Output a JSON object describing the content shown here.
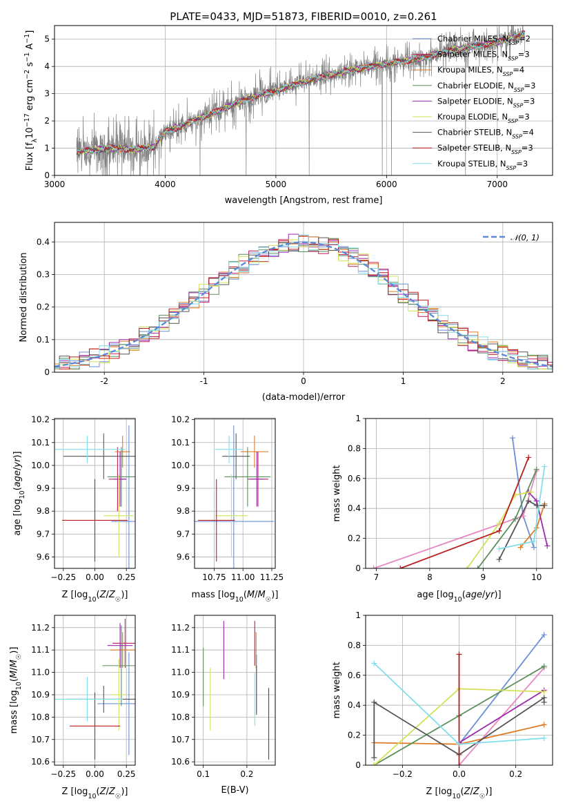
{
  "chart_data": [
    {
      "id": "spectrum",
      "type": "line",
      "title": "PLATE=0433, MJD=51873, FIBERID=0010, z=0.261",
      "xlabel": "wavelength [Angstrom, rest frame]",
      "ylabel": "Flux [fλ 10⁻¹⁷ erg cm⁻² s⁻¹ A⁻¹]",
      "xlim": [
        3000,
        7500
      ],
      "ylim": [
        0,
        5.5
      ],
      "xticks": [
        3000,
        4000,
        5000,
        6000,
        7000
      ],
      "yticks": [
        0,
        1,
        2,
        3,
        4,
        5
      ],
      "grid": true,
      "legend_position": "top-right",
      "series": [
        {
          "name": "Chabrier MILES, NSSP=2",
          "color": "#6b8ed6"
        },
        {
          "name": "Salpeter MILES, NSSP=3",
          "color": "#c2185b"
        },
        {
          "name": "Kroupa MILES, NSSP=4",
          "color": "#e07b24"
        },
        {
          "name": "Chabrier ELODIE, NSSP=3",
          "color": "#5a8f5a"
        },
        {
          "name": "Salpeter ELODIE, NSSP=3",
          "color": "#9c27b0"
        },
        {
          "name": "Kroupa ELODIE, NSSP=3",
          "color": "#d4e157"
        },
        {
          "name": "Chabrier STELIB, NSSP=4",
          "color": "#555555"
        },
        {
          "name": "Salpeter STELIB, NSSP=3",
          "color": "#b71c1c"
        },
        {
          "name": "Kroupa STELIB, NSSP=3",
          "color": "#80deea"
        }
      ],
      "data_color": "#808080",
      "continuum": {
        "x": [
          3200,
          3500,
          3700,
          3900,
          4000,
          4200,
          4500,
          4800,
          5000,
          5300,
          5600,
          6000,
          6300,
          6600,
          7000,
          7250
        ],
        "y": [
          0.85,
          1.0,
          0.95,
          1.05,
          1.6,
          1.9,
          2.4,
          2.9,
          3.1,
          3.5,
          3.8,
          4.1,
          4.3,
          4.6,
          4.9,
          5.2
        ]
      }
    },
    {
      "id": "residuals",
      "type": "line",
      "xlabel": "(data-model)/error",
      "ylabel": "Normed distribution",
      "xlim": [
        -2.5,
        2.5
      ],
      "ylim": [
        0,
        0.46
      ],
      "xticks": [
        -2,
        -1,
        0,
        1,
        2
      ],
      "yticks": [
        0.0,
        0.1,
        0.2,
        0.3,
        0.4
      ],
      "grid": true,
      "legend_position": "top-right",
      "legend": "𝒩(0, 1)",
      "gauss_color": "#5b8bd6"
    },
    {
      "id": "age-vs-Z",
      "type": "scatter",
      "xlabel": "Z [log10(Z/Z☉)]",
      "ylabel": "age  [log10(age/yr)]",
      "xlim": [
        -0.32,
        0.32
      ],
      "ylim": [
        9.55,
        10.205
      ],
      "xticks": [
        -0.25,
        0.0,
        0.25
      ],
      "xticklabels": [
        "−0.25",
        "0.00",
        "0.25"
      ],
      "yticks": [
        9.6,
        9.7,
        9.8,
        9.9,
        10.0,
        10.1,
        10.2
      ],
      "yticklabels": [
        "9.6",
        "9.7",
        "9.8",
        "9.9",
        "10.0",
        "10.1",
        "10.2"
      ],
      "points": [
        {
          "x": 0.27,
          "y": 9.755,
          "xerr": 0.14,
          "yerr": 0.42,
          "color": "#6b8ed6"
        },
        {
          "x": 0.18,
          "y": 9.94,
          "xerr": 0.07,
          "yerr": 0.14,
          "color": "#c2185b"
        },
        {
          "x": 0.22,
          "y": 10.06,
          "xerr": 0.06,
          "yerr": 0.07,
          "color": "#e07b24"
        },
        {
          "x": 0.21,
          "y": 9.95,
          "xerr": 0.11,
          "yerr": 0.13,
          "color": "#5a8f5a"
        },
        {
          "x": 0.2,
          "y": 9.94,
          "xerr": 0.05,
          "yerr": 0.12,
          "color": "#9c27b0"
        },
        {
          "x": 0.19,
          "y": 9.78,
          "xerr": 0.12,
          "yerr": 0.18,
          "color": "#d4e157"
        },
        {
          "x": 0.07,
          "y": 10.04,
          "xerr": 0.32,
          "yerr": 0.1,
          "color": "#555555"
        },
        {
          "x": 0.0,
          "y": 9.76,
          "xerr": 0.26,
          "yerr": 0.18,
          "color": "#b71c1c"
        },
        {
          "x": -0.06,
          "y": 10.07,
          "xerr": 0.3,
          "yerr": 0.06,
          "color": "#80deea"
        }
      ]
    },
    {
      "id": "age-vs-mass",
      "type": "scatter",
      "xlabel": "mass [log10(M/M☉)]",
      "xlim": [
        10.58,
        11.28
      ],
      "ylim": [
        9.55,
        10.205
      ],
      "xticks": [
        10.75,
        11.0,
        11.25
      ],
      "xticklabels": [
        "10.75",
        "11.00",
        "11.25"
      ],
      "yticks": [
        9.6,
        9.7,
        9.8,
        9.9,
        10.0,
        10.1,
        10.2
      ],
      "yticklabels": [
        "9.6",
        "9.7",
        "9.8",
        "9.9",
        "10.0",
        "10.1",
        "10.2"
      ],
      "points": [
        {
          "x": 10.92,
          "y": 9.755,
          "xerr": 0.35,
          "yerr": 0.42,
          "color": "#6b8ed6"
        },
        {
          "x": 11.13,
          "y": 9.94,
          "xerr": 0.09,
          "yerr": 0.12,
          "color": "#c2185b"
        },
        {
          "x": 11.1,
          "y": 10.06,
          "xerr": 0.12,
          "yerr": 0.07,
          "color": "#e07b24"
        },
        {
          "x": 11.04,
          "y": 9.95,
          "xerr": 0.2,
          "yerr": 0.13,
          "color": "#5a8f5a"
        },
        {
          "x": 11.12,
          "y": 9.94,
          "xerr": 0.06,
          "yerr": 0.12,
          "color": "#9c27b0"
        },
        {
          "x": 10.9,
          "y": 9.78,
          "xerr": 0.14,
          "yerr": 0.18,
          "color": "#d4e157"
        },
        {
          "x": 10.94,
          "y": 10.04,
          "xerr": 0.12,
          "yerr": 0.1,
          "color": "#555555"
        },
        {
          "x": 10.77,
          "y": 9.76,
          "xerr": 0.16,
          "yerr": 0.18,
          "color": "#b71c1c"
        },
        {
          "x": 10.88,
          "y": 10.07,
          "xerr": 0.12,
          "yerr": 0.06,
          "color": "#80deea"
        }
      ]
    },
    {
      "id": "massweight-vs-age",
      "type": "line",
      "xlabel": "age  [log10(age/yr)]",
      "ylabel": "mass weight",
      "xlim": [
        6.8,
        10.3
      ],
      "ylim": [
        0,
        1.0
      ],
      "xticks": [
        7,
        8,
        9,
        10
      ],
      "yticks": [
        0.0,
        0.2,
        0.4,
        0.6,
        0.8,
        1.0
      ],
      "series": [
        {
          "color": "#6b8ed6",
          "x": [
            9.55,
            9.75,
            9.95
          ],
          "y": [
            0.87,
            0.35,
            0.14
          ]
        },
        {
          "color": "#e786c2",
          "x": [
            6.95,
            9.75,
            10.0
          ],
          "y": [
            0.0,
            0.35,
            0.65
          ]
        },
        {
          "color": "#e07b24",
          "x": [
            9.7,
            10.0,
            10.15
          ],
          "y": [
            0.14,
            0.27,
            0.43
          ]
        },
        {
          "color": "#5a8f5a",
          "x": [
            8.9,
            9.6,
            10.0
          ],
          "y": [
            0.0,
            0.33,
            0.66
          ]
        },
        {
          "color": "#9c27b0",
          "x": [
            9.85,
            10.0,
            10.2
          ],
          "y": [
            0.51,
            0.45,
            0.15
          ]
        },
        {
          "color": "#d4e157",
          "x": [
            8.7,
            9.3,
            9.6,
            9.9
          ],
          "y": [
            0.0,
            0.3,
            0.49,
            0.51
          ]
        },
        {
          "color": "#555555",
          "x": [
            9.3,
            9.85,
            10.0,
            10.15
          ],
          "y": [
            0.06,
            0.45,
            0.42,
            0.42
          ]
        },
        {
          "color": "#b71c1c",
          "x": [
            7.45,
            9.3,
            9.85
          ],
          "y": [
            0.0,
            0.25,
            0.74
          ]
        },
        {
          "color": "#80deea",
          "x": [
            9.3,
            9.95,
            10.15
          ],
          "y": [
            0.13,
            0.18,
            0.68
          ]
        }
      ]
    },
    {
      "id": "mass-vs-Z",
      "type": "scatter",
      "xlabel": "Z [log10(Z/Z☉)]",
      "ylabel": "mass [log10(M/M☉)]",
      "xlim": [
        -0.32,
        0.32
      ],
      "ylim": [
        10.585,
        11.255
      ],
      "xticks": [
        -0.25,
        0.0,
        0.25
      ],
      "xticklabels": [
        "−0.25",
        "0.00",
        "0.25"
      ],
      "yticks": [
        10.6,
        10.7,
        10.8,
        10.9,
        11.0,
        11.1,
        11.2
      ],
      "yticklabels": [
        "10.6",
        "10.7",
        "10.8",
        "10.9",
        "11.0",
        "11.1",
        "11.2"
      ],
      "points": [
        {
          "x": 0.27,
          "y": 10.86,
          "xerr": 0.25,
          "yerr": 0.23,
          "color": "#6b8ed6"
        },
        {
          "x": 0.24,
          "y": 11.13,
          "xerr": 0.1,
          "yerr": 0.11,
          "color": "#c2185b"
        },
        {
          "x": 0.22,
          "y": 11.1,
          "xerr": 0.1,
          "yerr": 0.08,
          "color": "#e07b24"
        },
        {
          "x": 0.21,
          "y": 11.03,
          "xerr": 0.15,
          "yerr": 0.18,
          "color": "#5a8f5a"
        },
        {
          "x": 0.2,
          "y": 11.12,
          "xerr": 0.1,
          "yerr": 0.1,
          "color": "#9c27b0"
        },
        {
          "x": 0.19,
          "y": 10.9,
          "xerr": 0.06,
          "yerr": 0.16,
          "color": "#d4e157"
        },
        {
          "x": 0.07,
          "y": 10.88,
          "xerr": 0.3,
          "yerr": 0.06,
          "color": "#555555"
        },
        {
          "x": 0.0,
          "y": 10.76,
          "xerr": 0.2,
          "yerr": 0.15,
          "color": "#b71c1c"
        },
        {
          "x": -0.06,
          "y": 10.88,
          "xerr": 0.28,
          "yerr": 0.1,
          "color": "#80deea"
        }
      ]
    },
    {
      "id": "mass-vs-EBV",
      "type": "scatter",
      "xlabel": "E(B-V)",
      "xlim": [
        0.08,
        0.265
      ],
      "ylim": [
        10.585,
        11.255
      ],
      "xticks": [
        0.1,
        0.2
      ],
      "xticklabels": [
        "0.1",
        "0.2"
      ],
      "yticks": [
        10.6,
        10.7,
        10.8,
        10.9,
        11.0,
        11.1,
        11.2
      ],
      "yticklabels": [
        "10.6",
        "10.7",
        "10.8",
        "10.9",
        "11.0",
        "11.1",
        "11.2"
      ],
      "points": [
        {
          "x": 0.222,
          "y": 10.95,
          "yerr": 0.13,
          "color": "#6b8ed6"
        },
        {
          "x": 0.218,
          "y": 11.13,
          "yerr": 0.1,
          "color": "#c2185b"
        },
        {
          "x": 0.221,
          "y": 11.1,
          "yerr": 0.08,
          "color": "#e07b24"
        },
        {
          "x": 0.1,
          "y": 10.98,
          "yerr": 0.13,
          "color": "#5a8f5a"
        },
        {
          "x": 0.147,
          "y": 11.1,
          "yerr": 0.13,
          "color": "#9c27b0"
        },
        {
          "x": 0.116,
          "y": 10.88,
          "yerr": 0.14,
          "color": "#d4e157"
        },
        {
          "x": 0.222,
          "y": 10.92,
          "yerr": 0.11,
          "color": "#555555"
        },
        {
          "x": 0.25,
          "y": 10.77,
          "yerr": 0.16,
          "color": "#b71c1c"
        },
        {
          "x": 0.218,
          "y": 10.88,
          "yerr": 0.12,
          "color": "#80deea"
        }
      ]
    },
    {
      "id": "massweight-vs-Z",
      "type": "line",
      "xlabel": "Z [log10(Z/Z☉)]",
      "ylabel": "mass weight",
      "xlim": [
        -0.33,
        0.33
      ],
      "ylim": [
        0,
        1.0
      ],
      "xticks": [
        -0.2,
        0.0,
        0.2
      ],
      "xticklabels": [
        "−0.2",
        "0.0",
        "0.2"
      ],
      "yticks": [
        0.0,
        0.2,
        0.4,
        0.6,
        0.8,
        1.0
      ],
      "series": [
        {
          "color": "#6b8ed6",
          "x": [
            0.0,
            0.3
          ],
          "y": [
            0.14,
            0.87
          ]
        },
        {
          "color": "#e786c2",
          "x": [
            0.0,
            0.3
          ],
          "y": [
            0.0,
            0.65
          ]
        },
        {
          "color": "#e07b24",
          "x": [
            -0.3,
            0.0,
            0.3
          ],
          "y": [
            0.15,
            0.14,
            0.27
          ]
        },
        {
          "color": "#5a8f5a",
          "x": [
            -0.3,
            0.0,
            0.3
          ],
          "y": [
            0.0,
            0.33,
            0.66
          ]
        },
        {
          "color": "#9c27b0",
          "x": [
            0.0,
            0.3
          ],
          "y": [
            0.15,
            0.5
          ]
        },
        {
          "color": "#d4e157",
          "x": [
            -0.3,
            0.0,
            0.3
          ],
          "y": [
            0.0,
            0.51,
            0.49
          ]
        },
        {
          "color": "#555555",
          "x": [
            -0.3,
            -0.3,
            0.0,
            0.3,
            0.3
          ],
          "y": [
            0.05,
            0.42,
            0.07,
            0.45,
            0.42
          ]
        },
        {
          "color": "#b71c1c",
          "x": [
            0.0,
            0.0
          ],
          "y": [
            0.0,
            0.74
          ]
        },
        {
          "color": "#80deea",
          "x": [
            -0.3,
            0.0,
            0.3
          ],
          "y": [
            0.68,
            0.14,
            0.18
          ]
        }
      ]
    }
  ]
}
